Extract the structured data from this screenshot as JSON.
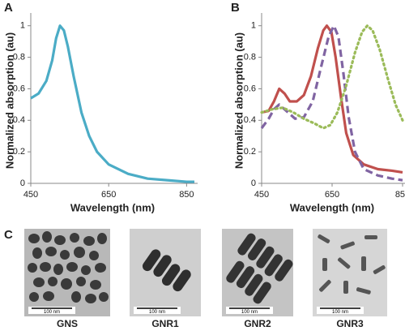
{
  "chart_data": [
    {
      "type": "line",
      "panel_label": "A",
      "xlabel": "Wavelength (nm)",
      "ylabel": "Normalized absorption (au)",
      "xlim": [
        450,
        870
      ],
      "xticks": [
        450,
        650,
        850
      ],
      "ylim": [
        0,
        1.05
      ],
      "yticks": [
        0,
        0.2,
        0.4,
        0.6,
        0.8,
        1
      ],
      "series": [
        {
          "color": "#4bacc6",
          "style": "solid",
          "x": [
            450,
            470,
            490,
            505,
            515,
            525,
            535,
            545,
            560,
            580,
            600,
            620,
            650,
            700,
            750,
            800,
            850,
            870
          ],
          "values": [
            0.54,
            0.57,
            0.65,
            0.78,
            0.92,
            1.0,
            0.97,
            0.87,
            0.68,
            0.45,
            0.3,
            0.2,
            0.12,
            0.06,
            0.03,
            0.02,
            0.01,
            0.01
          ]
        }
      ]
    },
    {
      "type": "line",
      "panel_label": "B",
      "xlabel": "Wavelength (nm)",
      "ylabel": "Normalized absorption (au)",
      "xlim": [
        450,
        850
      ],
      "xticks": [
        450,
        650,
        850
      ],
      "ylim": [
        0,
        1.05
      ],
      "yticks": [
        0,
        0.2,
        0.4,
        0.6,
        0.8,
        1
      ],
      "series": [
        {
          "color": "#c0504d",
          "style": "solid",
          "x": [
            450,
            470,
            485,
            500,
            515,
            530,
            550,
            570,
            590,
            610,
            625,
            635,
            648,
            660,
            675,
            690,
            710,
            740,
            780,
            820,
            850
          ],
          "values": [
            0.45,
            0.46,
            0.52,
            0.6,
            0.57,
            0.52,
            0.52,
            0.56,
            0.68,
            0.86,
            0.97,
            1.0,
            0.96,
            0.8,
            0.55,
            0.32,
            0.18,
            0.12,
            0.09,
            0.08,
            0.07
          ]
        },
        {
          "color": "#8064a2",
          "style": "dashed",
          "x": [
            450,
            470,
            485,
            500,
            520,
            545,
            570,
            595,
            620,
            640,
            655,
            668,
            682,
            697,
            715,
            740,
            780,
            820,
            850
          ],
          "values": [
            0.35,
            0.41,
            0.47,
            0.5,
            0.46,
            0.41,
            0.42,
            0.52,
            0.75,
            0.93,
            1.0,
            0.93,
            0.7,
            0.42,
            0.2,
            0.09,
            0.05,
            0.03,
            0.02
          ]
        },
        {
          "color": "#9bbb59",
          "style": "dotted",
          "x": [
            450,
            480,
            510,
            540,
            570,
            600,
            625,
            645,
            665,
            690,
            715,
            735,
            750,
            765,
            785,
            810,
            830,
            850
          ],
          "values": [
            0.45,
            0.47,
            0.48,
            0.45,
            0.41,
            0.38,
            0.35,
            0.37,
            0.45,
            0.62,
            0.83,
            0.96,
            1.0,
            0.97,
            0.85,
            0.65,
            0.5,
            0.4
          ]
        }
      ]
    }
  ],
  "images": {
    "panel_label": "C",
    "items": [
      {
        "caption": "GNS",
        "scale_bar": "100 nm"
      },
      {
        "caption": "GNR1",
        "scale_bar": "100 nm"
      },
      {
        "caption": "GNR2",
        "scale_bar": "100 nm"
      },
      {
        "caption": "GNR3",
        "scale_bar": "100 nm"
      }
    ]
  }
}
